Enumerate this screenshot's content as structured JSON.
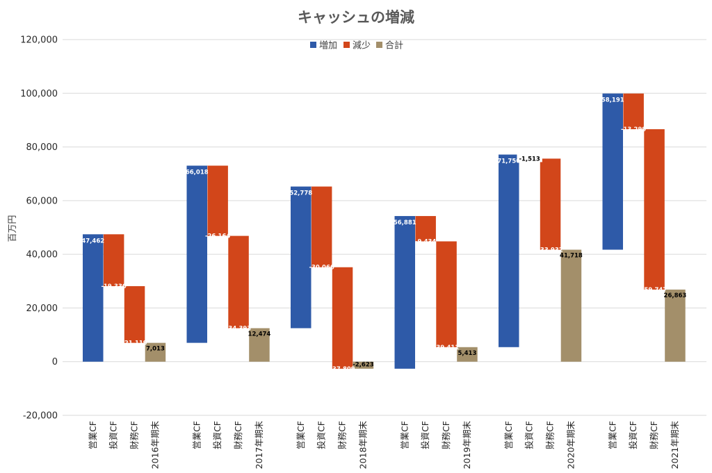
{
  "chart_data": {
    "type": "bar",
    "subtype": "waterfall",
    "title": "キャッシュの増減",
    "ylabel": "百万円",
    "ylim": [
      -20000,
      120000
    ],
    "yticks": [
      -20000,
      0,
      20000,
      40000,
      60000,
      80000,
      100000,
      120000
    ],
    "ytick_labels": [
      "-20,000",
      "0",
      "20,000",
      "40,000",
      "60,000",
      "80,000",
      "100,000",
      "120,000"
    ],
    "grid": true,
    "legend_position": "top-center",
    "legend": [
      {
        "key": "increase",
        "label": "増加",
        "color": "#2E5AA8"
      },
      {
        "key": "decrease",
        "label": "減少",
        "color": "#D2461A"
      },
      {
        "key": "total",
        "label": "合計",
        "color": "#A38F6A"
      }
    ],
    "groups": [
      {
        "year": "2016年期末",
        "bars": [
          {
            "label": "営業CF",
            "kind": "increase",
            "start": 0,
            "end": 47462,
            "value_label": "47,462"
          },
          {
            "label": "投資CF",
            "kind": "decrease",
            "start": 47462,
            "end": 28132,
            "value_label": "-19,330"
          },
          {
            "label": "財務CF",
            "kind": "decrease",
            "start": 28132,
            "end": 7013,
            "value_label": "-21,119"
          },
          {
            "label": "2016年期末",
            "kind": "total",
            "start": 0,
            "end": 7013,
            "value_label": "7,013"
          }
        ]
      },
      {
        "year": "2017年期末",
        "bars": [
          {
            "label": "営業CF",
            "kind": "increase",
            "start": 7013,
            "end": 73031,
            "value_label": "66,018"
          },
          {
            "label": "投資CF",
            "kind": "decrease",
            "start": 73031,
            "end": 46867,
            "value_label": "-26,164"
          },
          {
            "label": "財務CF",
            "kind": "decrease",
            "start": 46867,
            "end": 12474,
            "value_label": "-34,393"
          },
          {
            "label": "2017年期末",
            "kind": "total",
            "start": 0,
            "end": 12474,
            "value_label": "12,474"
          }
        ]
      },
      {
        "year": "2018年期末",
        "bars": [
          {
            "label": "営業CF",
            "kind": "increase",
            "start": 12474,
            "end": 65252,
            "value_label": "52,778"
          },
          {
            "label": "投資CF",
            "kind": "decrease",
            "start": 65252,
            "end": 35186,
            "value_label": "-30,066"
          },
          {
            "label": "財務CF",
            "kind": "decrease",
            "start": 35186,
            "end": -2623,
            "value_label": "-37,809"
          },
          {
            "label": "2018年期末",
            "kind": "total",
            "start": 0,
            "end": -2623,
            "value_label": "-2,623"
          }
        ]
      },
      {
        "year": "2019年期末",
        "bars": [
          {
            "label": "営業CF",
            "kind": "increase",
            "start": -2623,
            "end": 54258,
            "value_label": "56,881"
          },
          {
            "label": "投資CF",
            "kind": "decrease",
            "start": 54258,
            "end": 44824,
            "value_label": "-9,434"
          },
          {
            "label": "財務CF",
            "kind": "decrease",
            "start": 44824,
            "end": 5413,
            "value_label": "-39,411"
          },
          {
            "label": "2019年期末",
            "kind": "total",
            "start": 0,
            "end": 5413,
            "value_label": "5,413"
          }
        ]
      },
      {
        "year": "2020年期末",
        "bars": [
          {
            "label": "営業CF",
            "kind": "increase",
            "start": 5413,
            "end": 77163,
            "value_label": "71,750"
          },
          {
            "label": "投資CF",
            "kind": "decrease",
            "start": 77163,
            "end": 75650,
            "value_label": "-1,513"
          },
          {
            "label": "財務CF",
            "kind": "decrease",
            "start": 75650,
            "end": 41718,
            "value_label": "-33,932"
          },
          {
            "label": "2020年期末",
            "kind": "total",
            "start": 0,
            "end": 41718,
            "value_label": "41,718"
          }
        ]
      },
      {
        "year": "2021年期末",
        "bars": [
          {
            "label": "営業CF",
            "kind": "increase",
            "start": 41718,
            "end": 99909,
            "value_label": "58,191"
          },
          {
            "label": "投資CF",
            "kind": "decrease",
            "start": 99909,
            "end": 86610,
            "value_label": "-13,299"
          },
          {
            "label": "財務CF",
            "kind": "decrease",
            "start": 86610,
            "end": 26863,
            "value_label": "-59,747"
          },
          {
            "label": "2021年期末",
            "kind": "total",
            "start": 0,
            "end": 26863,
            "value_label": "26,863"
          }
        ]
      }
    ]
  }
}
